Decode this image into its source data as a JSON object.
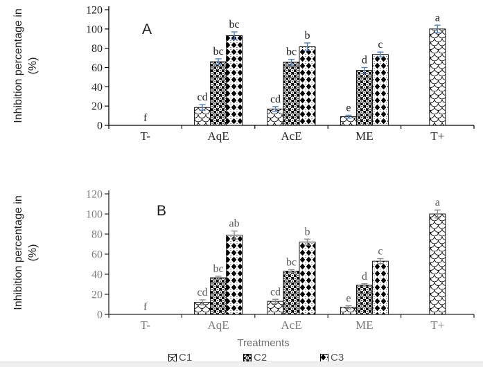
{
  "axes": {
    "y_label_line1": "Inhibition percentage in",
    "y_label_line2": "(%)",
    "x_title": "Treatments"
  },
  "legend": {
    "items": [
      {
        "label": "C1",
        "pattern": "fish-scale"
      },
      {
        "label": "C2",
        "pattern": "circles"
      },
      {
        "label": "C3",
        "pattern": "diamonds"
      }
    ]
  },
  "colors": {
    "error_bar_panel_a": "#4f81bd",
    "error_bar_panel_b": "#8c8c8c",
    "panel_a_text": "#1a1a1a",
    "panel_b_text": "#7a7a7a",
    "panel_b_letters": "#595959",
    "axis": "#000000",
    "bottom_strip": "#efefef"
  },
  "chart_data": [
    {
      "type": "bar",
      "panel": "A",
      "panel_letter": "A",
      "ylabel": "Inhibition percentage in (%)",
      "xlabel": "",
      "ylim": [
        0,
        120
      ],
      "yticks": [
        0,
        20,
        40,
        60,
        80,
        100,
        120
      ],
      "categories": [
        "T-",
        "AqE",
        "AcE",
        "ME",
        "T+"
      ],
      "series_names": [
        "C1",
        "C2",
        "C3"
      ],
      "legend_position": "bottom",
      "grid": false,
      "groups": [
        {
          "category": "T-",
          "group_letter": "f",
          "bars": []
        },
        {
          "category": "AqE",
          "bars": [
            {
              "series": "C1",
              "value": 18.5,
              "error": 3,
              "letter": "cd"
            },
            {
              "series": "C2",
              "value": 66,
              "error": 3,
              "letter": "bc"
            },
            {
              "series": "C3",
              "value": 93,
              "error": 4,
              "letter": "bc"
            }
          ]
        },
        {
          "category": "AcE",
          "bars": [
            {
              "series": "C1",
              "value": 17,
              "error": 2.5,
              "letter": "cd"
            },
            {
              "series": "C2",
              "value": 65.5,
              "error": 3,
              "letter": "bc"
            },
            {
              "series": "C3",
              "value": 81.5,
              "error": 4,
              "letter": "b"
            }
          ]
        },
        {
          "category": "ME",
          "bars": [
            {
              "series": "C1",
              "value": 9,
              "error": 1.5,
              "letter": "e"
            },
            {
              "series": "C2",
              "value": 57,
              "error": 3,
              "letter": "d"
            },
            {
              "series": "C3",
              "value": 73.5,
              "error": 2.5,
              "letter": "c"
            }
          ]
        },
        {
          "category": "T+",
          "bars": [
            {
              "series": "C1",
              "value": 100,
              "error": 4,
              "letter": "a"
            }
          ]
        }
      ]
    },
    {
      "type": "bar",
      "panel": "B",
      "panel_letter": "B",
      "ylabel": "Inhibition percentage in (%)",
      "xlabel": "Treatments",
      "ylim": [
        0,
        120
      ],
      "yticks": [
        0,
        20,
        40,
        60,
        80,
        100,
        120
      ],
      "categories": [
        "T-",
        "AqE",
        "AcE",
        "ME",
        "T+"
      ],
      "series_names": [
        "C1",
        "C2",
        "C3"
      ],
      "legend_position": "bottom",
      "grid": false,
      "groups": [
        {
          "category": "T-",
          "group_letter": "f",
          "bars": []
        },
        {
          "category": "AqE",
          "bars": [
            {
              "series": "C1",
              "value": 12,
              "error": 2.5,
              "letter": "cd"
            },
            {
              "series": "C2",
              "value": 36.5,
              "error": 1.5,
              "letter": "bc"
            },
            {
              "series": "C3",
              "value": 79,
              "error": 4,
              "letter": "ab"
            }
          ]
        },
        {
          "category": "AcE",
          "bars": [
            {
              "series": "C1",
              "value": 13,
              "error": 2,
              "letter": "cd"
            },
            {
              "series": "C2",
              "value": 43,
              "error": 1.5,
              "letter": "bc"
            },
            {
              "series": "C3",
              "value": 72,
              "error": 3,
              "letter": "b"
            }
          ]
        },
        {
          "category": "ME",
          "bars": [
            {
              "series": "C1",
              "value": 7,
              "error": 1.5,
              "letter": "e"
            },
            {
              "series": "C2",
              "value": 29,
              "error": 1.5,
              "letter": "d"
            },
            {
              "series": "C3",
              "value": 53,
              "error": 2.5,
              "letter": "c"
            }
          ]
        },
        {
          "category": "T+",
          "bars": [
            {
              "series": "C1",
              "value": 100,
              "error": 4,
              "letter": "a"
            }
          ]
        }
      ]
    }
  ]
}
